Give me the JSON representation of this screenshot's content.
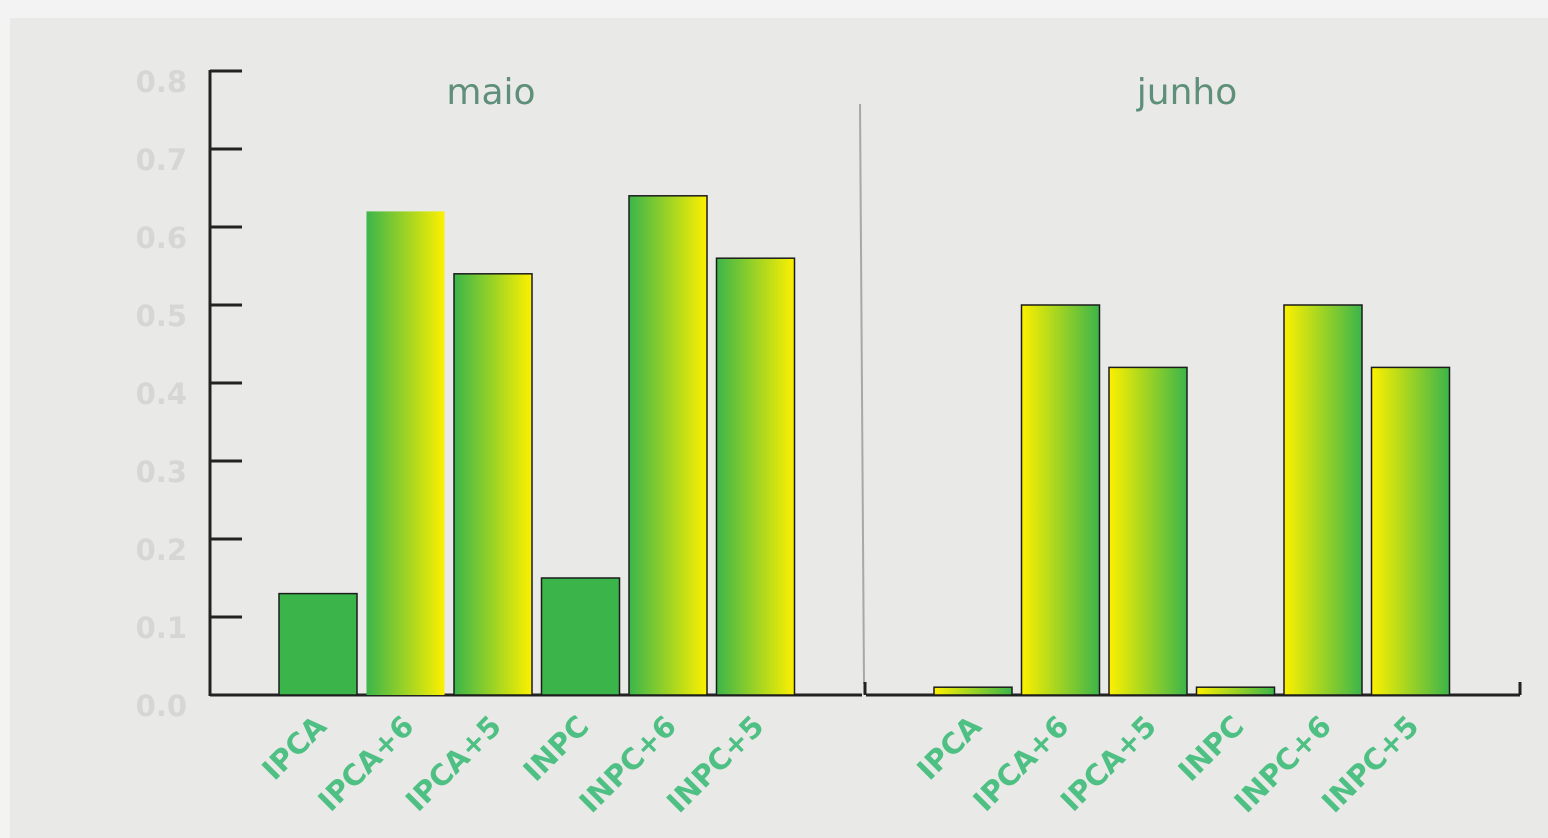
{
  "colors": {
    "green": "#3bb54a",
    "yellow": "#fdf000",
    "axis": "#222222",
    "tick_label": "#d6d6d6",
    "title": "#5e8f78",
    "category_label": "#4fc083"
  },
  "chart_data": {
    "type": "bar",
    "ylim": [
      0,
      0.8
    ],
    "yticks": [
      "0.0",
      "0.1",
      "0.2",
      "0.3",
      "0.4",
      "0.5",
      "0.6",
      "0.7",
      "0.8"
    ],
    "grid": false,
    "legend": "none",
    "groups": [
      {
        "title": "maio",
        "categories": [
          "IPCA",
          "IPCA+6",
          "IPCA+5",
          "INPC",
          "INPC+6",
          "INPC+5"
        ],
        "values": [
          0.13,
          0.62,
          0.54,
          0.15,
          0.64,
          0.56
        ],
        "fills": [
          "solid-green",
          "green-to-yellow",
          "green-to-yellow",
          "solid-green",
          "green-to-yellow",
          "green-to-yellow"
        ]
      },
      {
        "title": "junho",
        "categories": [
          "IPCA",
          "IPCA+6",
          "IPCA+5",
          "INPC",
          "INPC+6",
          "INPC+5"
        ],
        "values": [
          0.01,
          0.5,
          0.42,
          0.01,
          0.5,
          0.42
        ],
        "fills": [
          "yellow-to-green",
          "yellow-to-green",
          "yellow-to-green",
          "yellow-to-green",
          "yellow-to-green",
          "yellow-to-green"
        ]
      }
    ]
  }
}
